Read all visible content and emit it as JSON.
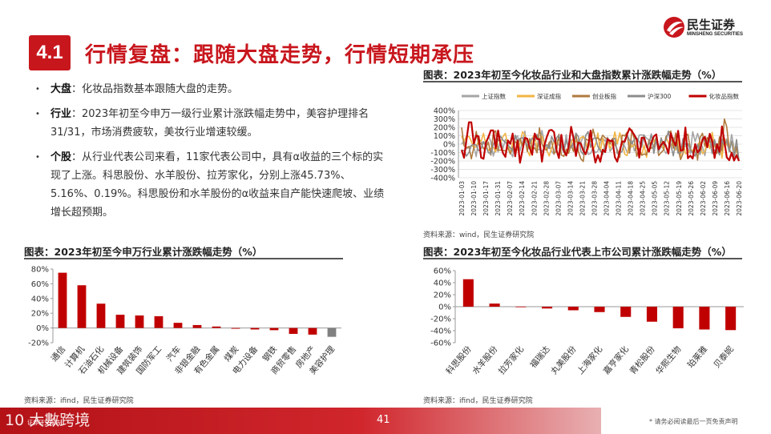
{
  "header": {
    "section_number": "4.1",
    "title": "行情复盘：跟随大盘走势，行情短期承压",
    "logo_cn": "民生证券",
    "logo_en": "MINSHENG SECURITIES"
  },
  "bullets": [
    {
      "label": "大盘",
      "text": "：化妆品指数基本跟随大盘的走势。"
    },
    {
      "label": "行业",
      "text": "：2023年初至今申万一级行业累计涨跌幅走势中，美容护理排名31/31，市场消费疲软，美妆行业增速较缓。"
    },
    {
      "label": "个股",
      "text": "：从行业代表公司来看，11家代表公司中，具有α收益的三个标的实现了上涨。科思股份、水羊股份、拉芳家化，分别上涨45.73%、5.16%、0.19%。科思股份和水羊股份的α收益来自产能快速爬坡、业绩增长超预期。"
    }
  ],
  "charts": {
    "line": {
      "title": "图表：2023年初至今化妆品行业和大盘指数累计涨跌幅走势（%）",
      "source": "资料来源：wind，民生证券研究院"
    },
    "industry": {
      "title": "图表：2023年初至今申万行业累计涨跌幅走势（%）",
      "source": "资料来源：ifind，民生证券研究院"
    },
    "company": {
      "title": "图表：2023年初至今化妆品行业代表上市公司累计涨跌幅走势（%）",
      "source": "资料来源：ifind，民生证券研究院"
    }
  },
  "chart_data": [
    {
      "type": "line",
      "series": [
        {
          "name": "上证指数",
          "color": "#a5a5a5"
        },
        {
          "name": "深证成指",
          "color": "#f2b544"
        },
        {
          "name": "创业板指",
          "color": "#b07a3e"
        },
        {
          "name": "沪深300",
          "color": "#8c8c8c"
        },
        {
          "name": "化妆品指数",
          "color": "#c00000"
        }
      ],
      "x": [
        "2023-01-03",
        "2023-01-10",
        "2023-01-17",
        "2023-01-31",
        "2023-02-07",
        "2023-02-14",
        "2023-02-21",
        "2023-02-28",
        "2023-03-07",
        "2023-03-14",
        "2023-03-21",
        "2023-03-28",
        "2023-04-04",
        "2023-04-11",
        "2023-04-18",
        "2023-04-25",
        "2023-05-05",
        "2023-05-12",
        "2023-05-19",
        "2023-05-26",
        "2023-06-02",
        "2023-06-09",
        "2023-06-16",
        "2023-06-20"
      ],
      "yticks": [
        "400%",
        "300%",
        "200%",
        "100%",
        "0%",
        "-100%",
        "-200%",
        "-300%",
        "-400%"
      ],
      "ylim": [
        -400,
        400
      ],
      "legend": "top"
    },
    {
      "type": "bar",
      "categories": [
        "通信",
        "计算机",
        "石油石化",
        "机械设备",
        "建筑装饰",
        "国防军工",
        "汽车",
        "非银金融",
        "有色金属",
        "煤炭",
        "电力设备",
        "钢铁",
        "商贸零售",
        "房地产",
        "美容护理"
      ],
      "values": [
        75,
        58,
        33,
        18,
        17,
        16,
        7,
        4,
        2,
        -1,
        -2,
        -3,
        -8,
        -9,
        -12
      ],
      "yticks": [
        "80%",
        "60%",
        "40%",
        "20%",
        "0%",
        "-20%"
      ],
      "ylim": [
        -20,
        80
      ],
      "highlight": "美容护理",
      "bar_color": "#c00000",
      "highlight_color": "#808080"
    },
    {
      "type": "bar",
      "categories": [
        "科思股份",
        "水羊股份",
        "拉芳家化",
        "福瑞达",
        "丸美股份",
        "上海家化",
        "嘉亨家化",
        "青松股份",
        "华熙生物",
        "珀莱雅",
        "贝泰妮"
      ],
      "values": [
        45.73,
        5.16,
        0.19,
        -3,
        -6,
        -9,
        -17,
        -25,
        -36,
        -38,
        -39
      ],
      "yticks": [
        "60%",
        "40%",
        "20%",
        "0%",
        "-20%",
        "-40%",
        "-60%"
      ],
      "ylim": [
        -60,
        60
      ],
      "bar_color": "#c00000"
    }
  ],
  "footer": {
    "page": "41",
    "disclaimer": "* 请务必阅读最后一页免责声明",
    "watermark": "10 大數跨境",
    "watermark_small": "证券研究报告"
  }
}
